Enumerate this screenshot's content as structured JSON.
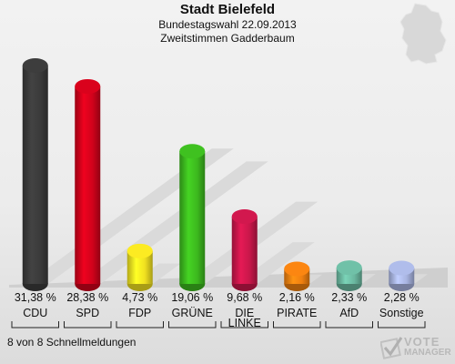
{
  "header": {
    "title": "Stadt Bielefeld",
    "subtitle_1": "Bundestagswahl 22.09.2013",
    "subtitle_2": "Zweitstimmen Gadderbaum"
  },
  "footnote": "8 von 8 Schnellmeldungen",
  "logo": {
    "line1": "VOTE",
    "line2": "MANAGER"
  },
  "chart_data": {
    "type": "bar",
    "title": "Stadt Bielefeld",
    "subtitle": "Bundestagswahl 22.09.2013 — Zweitstimmen Gadderbaum",
    "categories": [
      "CDU",
      "SPD",
      "FDP",
      "GRÜNE",
      "DIE LINKE",
      "PIRATE",
      "AfD",
      "Sonstige"
    ],
    "values": [
      31.38,
      28.38,
      4.73,
      19.06,
      9.68,
      2.16,
      2.33,
      2.28
    ],
    "value_labels": [
      "31,38 %",
      "28,38 %",
      "4,73 %",
      "19,06 %",
      "9,68 %",
      "2,16 %",
      "2,33 %",
      "2,28 %"
    ],
    "colors": [
      "#3a3a3a",
      "#d0021b",
      "#f0e020",
      "#3cb81e",
      "#c8174a",
      "#f08010",
      "#6bb8a0",
      "#a8b4e0"
    ],
    "unit": "%",
    "ylim": [
      0,
      32
    ],
    "grid": false,
    "legend": "none"
  }
}
